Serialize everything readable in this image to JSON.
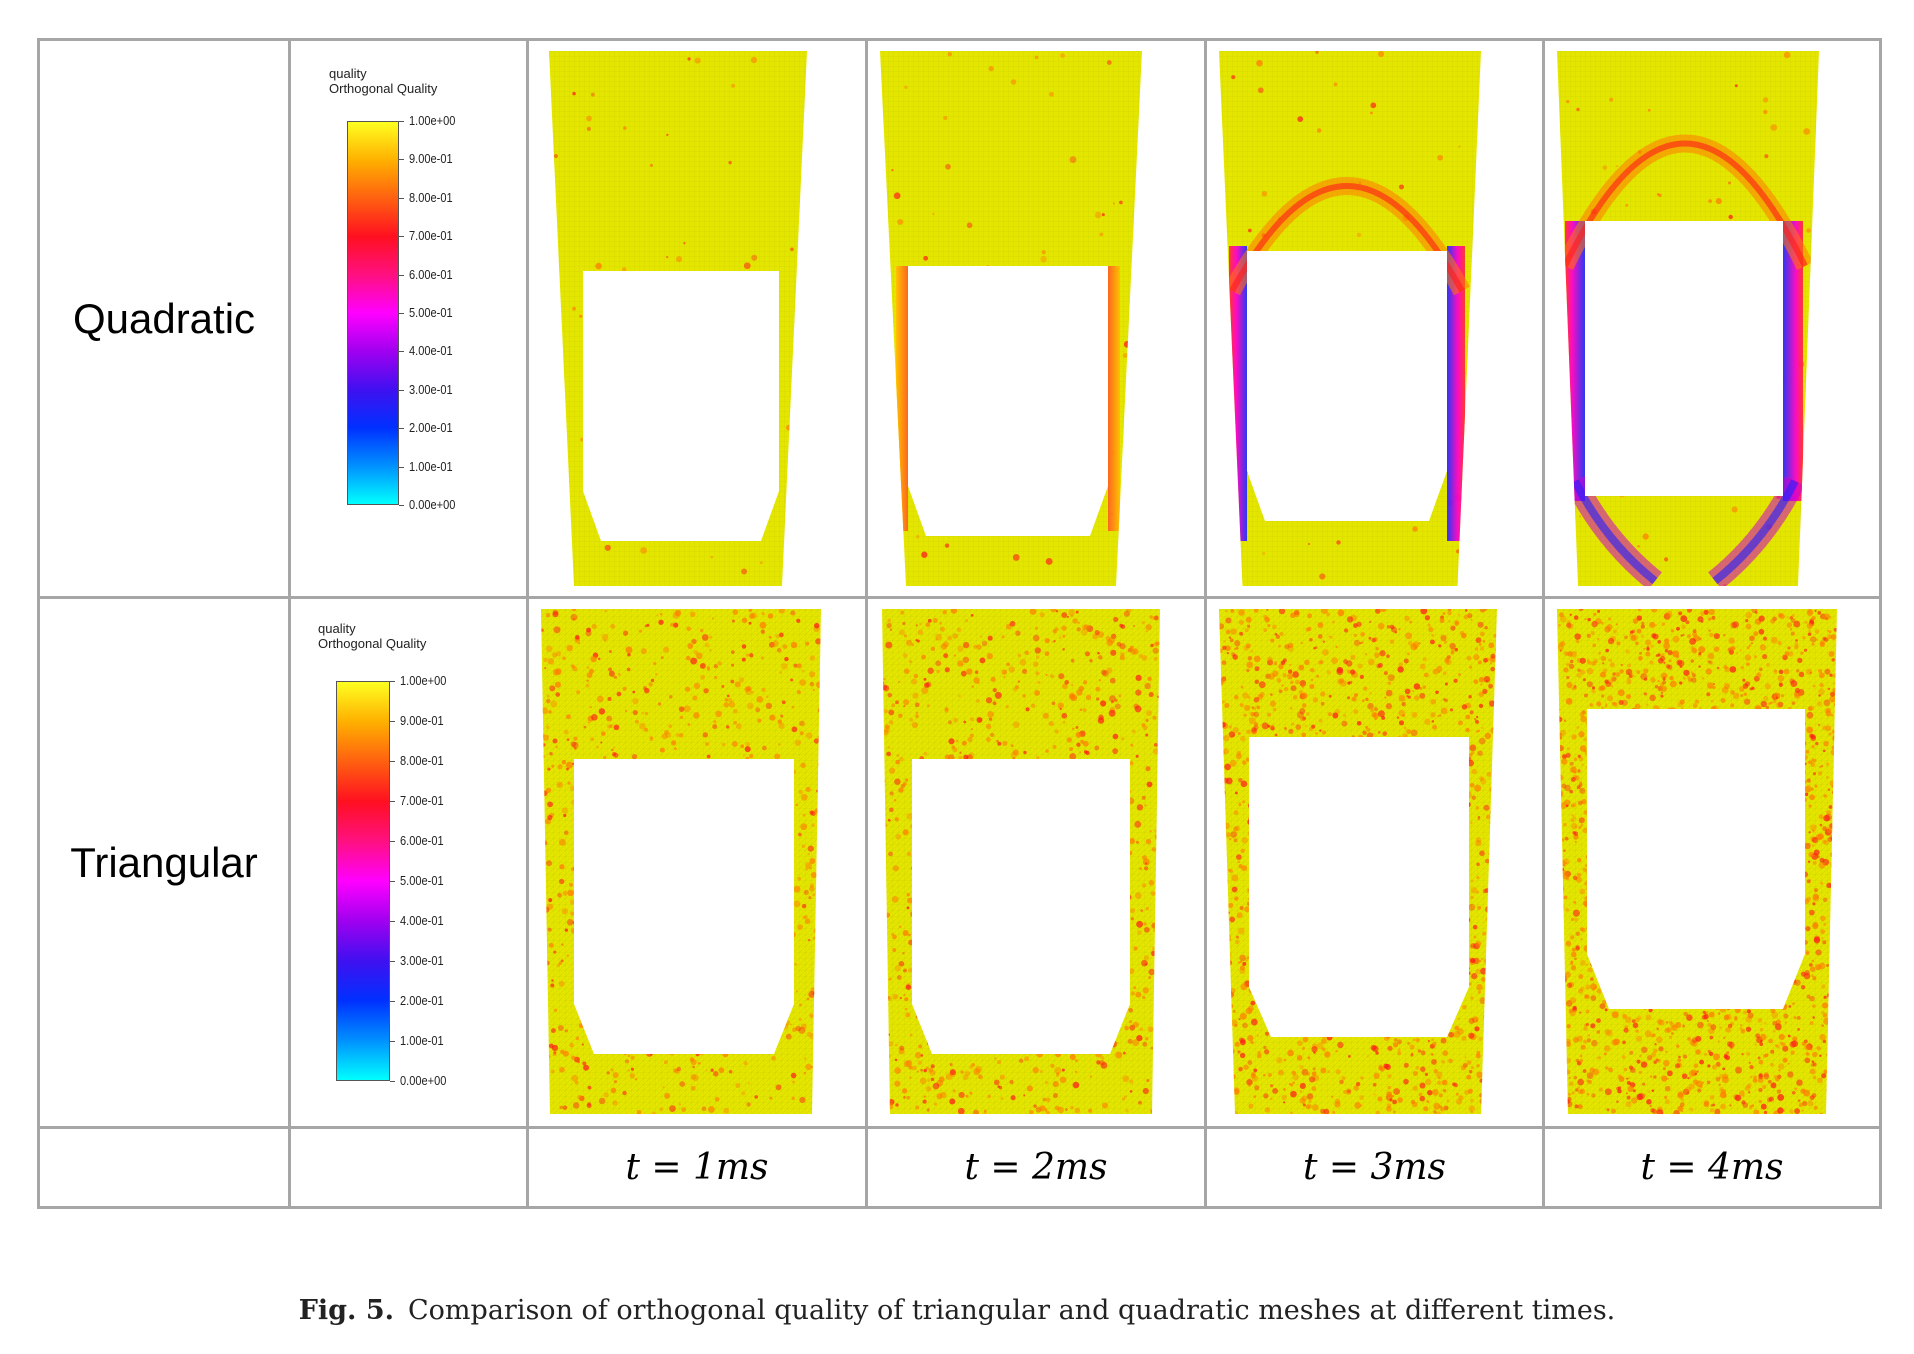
{
  "rows": [
    {
      "label": "Quadratic",
      "legend": {
        "title1": "quality",
        "title2": "Orthogonal Quality"
      }
    },
    {
      "label": "Triangular",
      "legend": {
        "title1": "quality",
        "title2": "Orthogonal Quality"
      }
    }
  ],
  "legend_ticks": [
    "1.00e+00",
    "9.00e-01",
    "8.00e-01",
    "7.00e-01",
    "6.00e-01",
    "5.00e-01",
    "4.00e-01",
    "3.00e-01",
    "2.00e-01",
    "1.00e-01",
    "0.00e+00"
  ],
  "times": [
    "t = 1ms",
    "t = 2ms",
    "t = 3ms",
    "t = 4ms"
  ],
  "caption": {
    "label": "Fig. 5.",
    "text": "Comparison of orthogonal quality of triangular and quadratic meshes at different times."
  },
  "colors": {
    "mesh_good": "#e5e600",
    "mesh_mid": "#ff7a00",
    "mesh_low": "#ff1a1a",
    "mesh_poor": "#cc00cc",
    "mesh_bad": "#2222ff"
  }
}
